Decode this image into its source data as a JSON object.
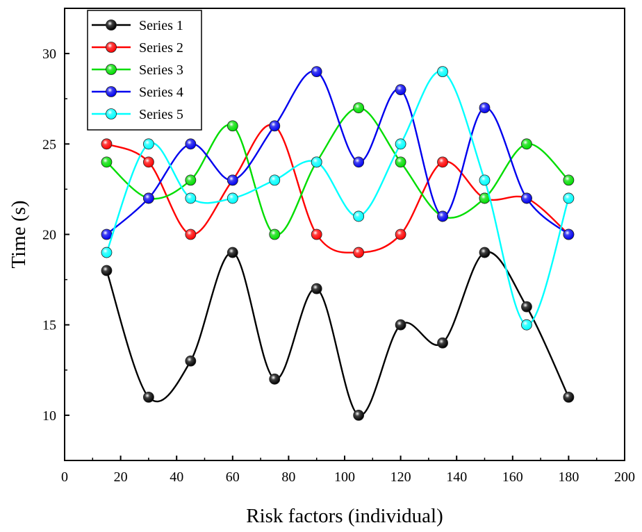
{
  "chart_data": {
    "type": "line",
    "title": "",
    "xlabel": "Risk factors (individual)",
    "ylabel": "Time (s)",
    "xlim": [
      0,
      200
    ],
    "ylim": [
      7.5,
      32.5
    ],
    "x_ticks": [
      0,
      20,
      40,
      60,
      80,
      100,
      120,
      140,
      160,
      180,
      200
    ],
    "y_ticks": [
      10,
      15,
      20,
      25,
      30
    ],
    "grid": false,
    "smooth": true,
    "legend_position": "top-left",
    "x": [
      15,
      30,
      45,
      60,
      75,
      90,
      105,
      120,
      135,
      150,
      165,
      180
    ],
    "series": [
      {
        "name": "Series 1",
        "color": "#000000",
        "values": [
          18,
          11,
          13,
          19,
          12,
          17,
          10,
          15,
          14,
          19,
          16,
          11
        ]
      },
      {
        "name": "Series 2",
        "color": "#ff0000",
        "values": [
          25,
          24,
          20,
          23,
          26,
          20,
          19,
          20,
          24,
          22,
          22,
          20
        ]
      },
      {
        "name": "Series 3",
        "color": "#00dd00",
        "values": [
          24,
          22,
          23,
          26,
          20,
          24,
          27,
          24,
          21,
          22,
          25,
          23
        ]
      },
      {
        "name": "Series 4",
        "color": "#0000ee",
        "values": [
          20,
          22,
          25,
          23,
          26,
          29,
          24,
          28,
          21,
          27,
          22,
          20
        ]
      },
      {
        "name": "Series 5",
        "color": "#00ffff",
        "values": [
          19,
          25,
          22,
          22,
          23,
          24,
          21,
          25,
          29,
          23,
          15,
          22
        ]
      }
    ]
  }
}
